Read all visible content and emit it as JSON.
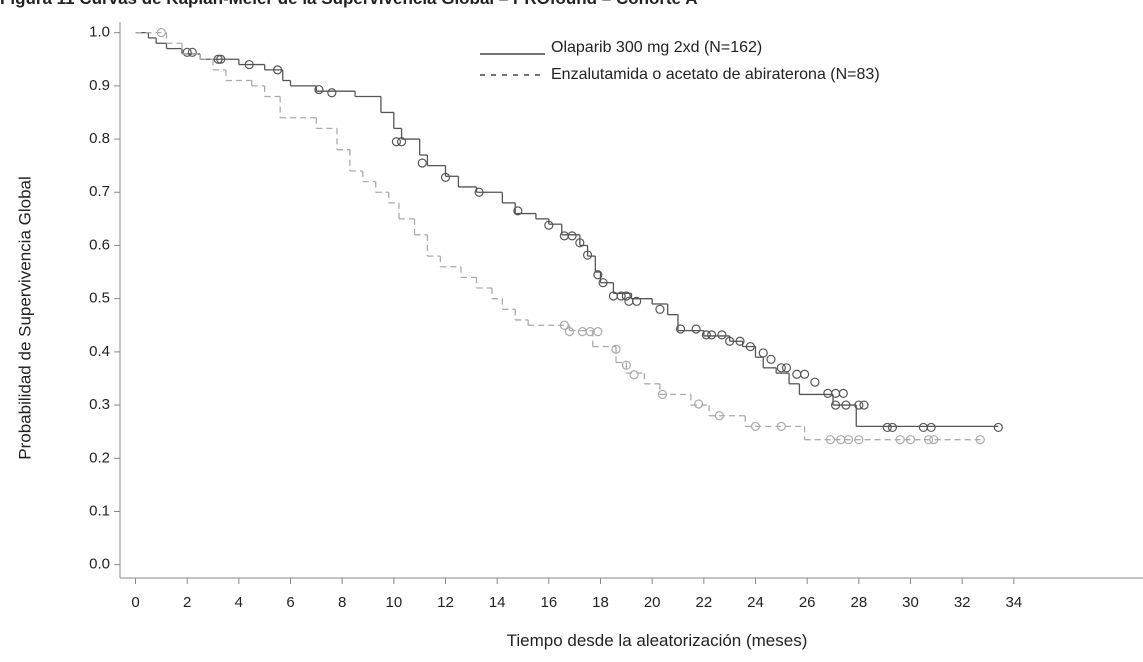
{
  "chart_data": {
    "type": "km",
    "title": "Figura 11 Curvas de Kaplan-Meier de la Supervivencia Global – PROfound – Cohorte A",
    "x_label": "Tiempo desde la aleatorización (meses)",
    "y_label": "Probabilidad de Supervivencia Global",
    "xlim": [
      -0.6,
      39
    ],
    "ylim": [
      -0.025,
      1.02
    ],
    "xticks": [
      0,
      2,
      4,
      6,
      8,
      10,
      12,
      14,
      16,
      18,
      20,
      22,
      24,
      26,
      28,
      30,
      32,
      34
    ],
    "yticks": [
      {
        "value": 0,
        "label": "0.0"
      },
      0.1,
      0.2,
      0.3,
      0.4,
      0.5,
      0.6,
      0.7,
      0.8,
      0.9,
      {
        "value": 1,
        "label": "1.0"
      }
    ],
    "series": [
      {
        "name": "Olaparib 300 mg 2xd (N=162)",
        "color": "#555555",
        "dashed": false,
        "x": [
          0,
          0.5,
          0.8,
          1.2,
          1.8,
          2.5,
          4,
          5,
          5.7,
          6,
          7,
          8.5,
          9.5,
          10,
          10.3,
          11,
          11.3,
          12,
          12.5,
          13.2,
          14.2,
          14.7,
          15.5,
          16,
          16.5,
          17.2,
          17.5,
          17.8,
          18,
          18.5,
          19.2,
          20,
          20.6,
          21,
          22,
          23,
          23.5,
          24,
          24.3,
          24.8,
          25.3,
          25.7,
          27,
          27.9,
          33.4
        ],
        "y": [
          1.0,
          0.99,
          0.98,
          0.97,
          0.96,
          0.95,
          0.94,
          0.93,
          0.91,
          0.9,
          0.89,
          0.88,
          0.85,
          0.82,
          0.8,
          0.77,
          0.75,
          0.73,
          0.71,
          0.7,
          0.68,
          0.66,
          0.65,
          0.64,
          0.62,
          0.6,
          0.58,
          0.55,
          0.53,
          0.51,
          0.5,
          0.49,
          0.47,
          0.44,
          0.43,
          0.42,
          0.41,
          0.39,
          0.37,
          0.36,
          0.34,
          0.32,
          0.3,
          0.26,
          0.26
        ],
        "censor_x": [
          2,
          2.2,
          3.2,
          3.3,
          4.4,
          5.5,
          7.1,
          7.6,
          10.1,
          10.3,
          11.1,
          12,
          13.3,
          14.8,
          16,
          16.6,
          16.9,
          17.2,
          17.5,
          17.9,
          18.1,
          18.5,
          18.8,
          19,
          19.1,
          19.4,
          20.3,
          21.1,
          21.7,
          22.1,
          22.3,
          22.7,
          23,
          23.4,
          23.8,
          24.3,
          24.6,
          25,
          25.2,
          25.6,
          25.9,
          26.3,
          26.8,
          27.1,
          27.4,
          27.1,
          27.5,
          28,
          28.2,
          29.1,
          29.3,
          30.5,
          30.8,
          33.4
        ],
        "censor_y": [
          0.963,
          0.963,
          0.95,
          0.95,
          0.94,
          0.93,
          0.893,
          0.887,
          0.795,
          0.795,
          0.755,
          0.728,
          0.7,
          0.665,
          0.638,
          0.618,
          0.618,
          0.605,
          0.582,
          0.545,
          0.53,
          0.505,
          0.505,
          0.505,
          0.495,
          0.495,
          0.48,
          0.443,
          0.443,
          0.432,
          0.432,
          0.432,
          0.42,
          0.42,
          0.41,
          0.398,
          0.386,
          0.37,
          0.37,
          0.358,
          0.358,
          0.343,
          0.322,
          0.322,
          0.322,
          0.3,
          0.3,
          0.3,
          0.3,
          0.258,
          0.258,
          0.258,
          0.258,
          0.258
        ]
      },
      {
        "name": "Enzalutamida o acetato de abiraterona (N=83)",
        "color": "#aaaaaa",
        "dashed": true,
        "x": [
          0,
          1.2,
          1.8,
          2.5,
          3,
          3.5,
          4.5,
          5,
          5.6,
          7,
          7.8,
          8.3,
          8.8,
          9.3,
          9.8,
          10.2,
          10.8,
          11.3,
          11.8,
          12.6,
          13.2,
          13.8,
          14.2,
          14.7,
          15.2,
          16.8,
          17.7,
          18.6,
          19,
          19.7,
          20.3,
          21.5,
          22.2,
          23.6,
          25.9,
          32.8
        ],
        "y": [
          1.0,
          0.98,
          0.96,
          0.95,
          0.93,
          0.91,
          0.9,
          0.88,
          0.84,
          0.82,
          0.78,
          0.74,
          0.72,
          0.7,
          0.68,
          0.65,
          0.62,
          0.58,
          0.56,
          0.54,
          0.52,
          0.5,
          0.48,
          0.46,
          0.45,
          0.44,
          0.41,
          0.38,
          0.36,
          0.34,
          0.32,
          0.3,
          0.28,
          0.26,
          0.235,
          0.235
        ],
        "censor_x": [
          1,
          16.6,
          16.8,
          17.3,
          17.6,
          17.9,
          18.6,
          19,
          19.3,
          20.4,
          21.8,
          22.6,
          24,
          25,
          26.9,
          27.3,
          27.6,
          28,
          29.6,
          30,
          30.7,
          30.9,
          32.7
        ],
        "censor_y": [
          1.0,
          0.45,
          0.438,
          0.438,
          0.438,
          0.438,
          0.405,
          0.375,
          0.357,
          0.32,
          0.302,
          0.28,
          0.26,
          0.26,
          0.235,
          0.235,
          0.235,
          0.235,
          0.235,
          0.235,
          0.235,
          0.235,
          0.235
        ]
      }
    ]
  }
}
